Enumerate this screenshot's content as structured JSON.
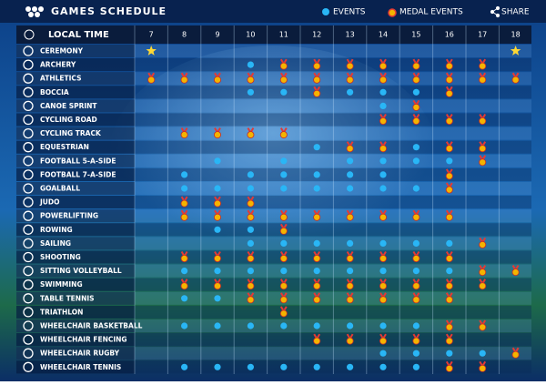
{
  "header": {
    "title": "GAMES  SCHEDULE",
    "legend": {
      "event": "EVENTS",
      "medal": "MEDAL EVENTS"
    },
    "share": "SHARE"
  },
  "table": {
    "time_label": "LOCAL TIME",
    "days": [
      7,
      8,
      9,
      10,
      11,
      12,
      13,
      14,
      15,
      16,
      17,
      18
    ],
    "rows": [
      {
        "sport": "CEREMONY",
        "cells": [
          "star",
          null,
          null,
          null,
          null,
          null,
          null,
          null,
          null,
          null,
          null,
          "star"
        ]
      },
      {
        "sport": "ARCHERY",
        "cells": [
          null,
          null,
          null,
          "event",
          "medal",
          "medal",
          "medal",
          "medal",
          "medal",
          "medal",
          "medal",
          null
        ]
      },
      {
        "sport": "ATHLETICS",
        "cells": [
          "medal",
          "medal",
          "medal",
          "medal",
          "medal",
          "medal",
          "medal",
          "medal",
          "medal",
          "medal",
          "medal",
          "medal"
        ]
      },
      {
        "sport": "BOCCIA",
        "cells": [
          null,
          null,
          null,
          "event",
          "event",
          "medal",
          "event",
          "event",
          "event",
          "medal",
          null,
          null
        ]
      },
      {
        "sport": "CANOE SPRINT",
        "cells": [
          null,
          null,
          null,
          null,
          null,
          null,
          null,
          "event",
          "medal",
          null,
          null,
          null
        ]
      },
      {
        "sport": "CYCLING ROAD",
        "cells": [
          null,
          null,
          null,
          null,
          null,
          null,
          null,
          "medal",
          "medal",
          "medal",
          "medal",
          null
        ]
      },
      {
        "sport": "CYCLING TRACK",
        "cells": [
          null,
          "medal",
          "medal",
          "medal",
          "medal",
          null,
          null,
          null,
          null,
          null,
          null,
          null
        ]
      },
      {
        "sport": "EQUESTRIAN",
        "cells": [
          null,
          null,
          null,
          null,
          null,
          "event",
          "medal",
          "medal",
          "event",
          "medal",
          "medal",
          null
        ]
      },
      {
        "sport": "FOOTBALL 5-A-SIDE",
        "cells": [
          null,
          null,
          "event",
          null,
          "event",
          null,
          "event",
          "event",
          "event",
          "event",
          "medal",
          null
        ]
      },
      {
        "sport": "FOOTBALL 7-A-SIDE",
        "cells": [
          null,
          "event",
          null,
          "event",
          "event",
          "event",
          "event",
          "event",
          null,
          "medal",
          null,
          null
        ]
      },
      {
        "sport": "GOALBALL",
        "cells": [
          null,
          "event",
          "event",
          "event",
          "event",
          "event",
          "event",
          "event",
          "event",
          "medal",
          null,
          null
        ]
      },
      {
        "sport": "JUDO",
        "cells": [
          null,
          "medal",
          "medal",
          "medal",
          null,
          null,
          null,
          null,
          null,
          null,
          null,
          null
        ]
      },
      {
        "sport": "POWERLIFTING",
        "cells": [
          null,
          "medal",
          "medal",
          "medal",
          "medal",
          "medal",
          "medal",
          "medal",
          "medal",
          "medal",
          null,
          null
        ]
      },
      {
        "sport": "ROWING",
        "cells": [
          null,
          null,
          "event",
          "event",
          "medal",
          null,
          null,
          null,
          null,
          null,
          null,
          null
        ]
      },
      {
        "sport": "SAILING",
        "cells": [
          null,
          null,
          null,
          "event",
          "event",
          "event",
          "event",
          "event",
          "event",
          "event",
          "medal",
          null
        ]
      },
      {
        "sport": "SHOOTING",
        "cells": [
          null,
          "medal",
          "medal",
          "medal",
          "medal",
          "medal",
          "medal",
          "medal",
          "medal",
          "medal",
          null,
          null
        ]
      },
      {
        "sport": "SITTING VOLLEYBALL",
        "cells": [
          null,
          "event",
          "event",
          "event",
          "event",
          "event",
          "event",
          "event",
          "event",
          "event",
          "medal",
          "medal"
        ]
      },
      {
        "sport": "SWIMMING",
        "cells": [
          null,
          "medal",
          "medal",
          "medal",
          "medal",
          "medal",
          "medal",
          "medal",
          "medal",
          "medal",
          "medal",
          null
        ]
      },
      {
        "sport": "TABLE TENNIS",
        "cells": [
          null,
          "event",
          "event",
          "medal",
          "medal",
          "medal",
          "medal",
          "medal",
          "medal",
          "medal",
          null,
          null
        ]
      },
      {
        "sport": "TRIATHLON",
        "cells": [
          null,
          null,
          null,
          null,
          "medal",
          null,
          null,
          null,
          null,
          null,
          null,
          null
        ]
      },
      {
        "sport": "WHEELCHAIR BASKETBALL",
        "cells": [
          null,
          "event",
          "event",
          "event",
          "event",
          "event",
          "event",
          "event",
          "event",
          "medal",
          "medal",
          null
        ]
      },
      {
        "sport": "WHEELCHAIR FENCING",
        "cells": [
          null,
          null,
          null,
          null,
          null,
          "medal",
          "medal",
          "medal",
          "medal",
          "medal",
          null,
          null
        ]
      },
      {
        "sport": "WHEELCHAIR RUGBY",
        "cells": [
          null,
          null,
          null,
          null,
          null,
          null,
          null,
          "event",
          "event",
          "event",
          "event",
          "medal"
        ]
      },
      {
        "sport": "WHEELCHAIR TENNIS",
        "cells": [
          null,
          "event",
          "event",
          "event",
          "event",
          "event",
          "event",
          "event",
          "event",
          "medal",
          "medal",
          null
        ]
      }
    ]
  }
}
